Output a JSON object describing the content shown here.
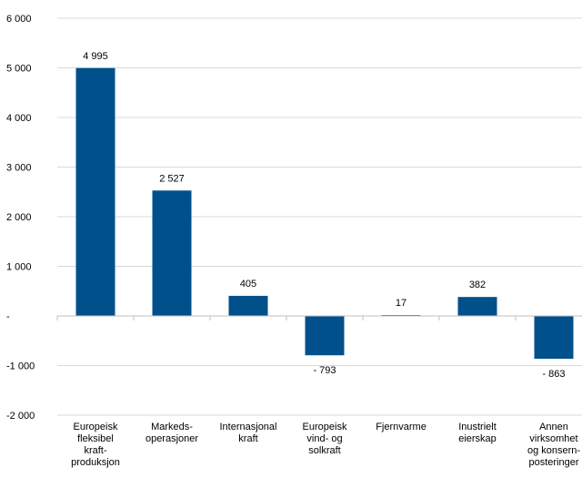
{
  "chart_data": {
    "type": "bar",
    "categories": [
      [
        "Europeisk",
        "fleksibel",
        "kraft-",
        "produksjon"
      ],
      [
        "Markeds-",
        "operasjoner"
      ],
      [
        "Internasjonal",
        "kraft"
      ],
      [
        "Europeisk",
        "vind- og",
        "solkraft"
      ],
      [
        "Fjernvarme"
      ],
      [
        "Inustrielt",
        "eierskap"
      ],
      [
        "Annen",
        "virksomhet",
        "og konsern-",
        "posteringer"
      ]
    ],
    "values": [
      4995,
      2527,
      405,
      -793,
      17,
      382,
      -863
    ],
    "data_labels": [
      "4 995",
      "2 527",
      "405",
      "- 793",
      "17",
      "382",
      "- 863"
    ],
    "ylim": [
      -2000,
      6000
    ],
    "yticks": [
      -2000,
      -1000,
      0,
      1000,
      2000,
      3000,
      4000,
      5000,
      6000
    ],
    "ytick_labels": [
      "-2 000",
      "-1 000",
      "-",
      "1 000",
      "2 000",
      "3 000",
      "4 000",
      "5 000",
      "6 000"
    ],
    "bar_color": "#00508c",
    "grid": true
  }
}
